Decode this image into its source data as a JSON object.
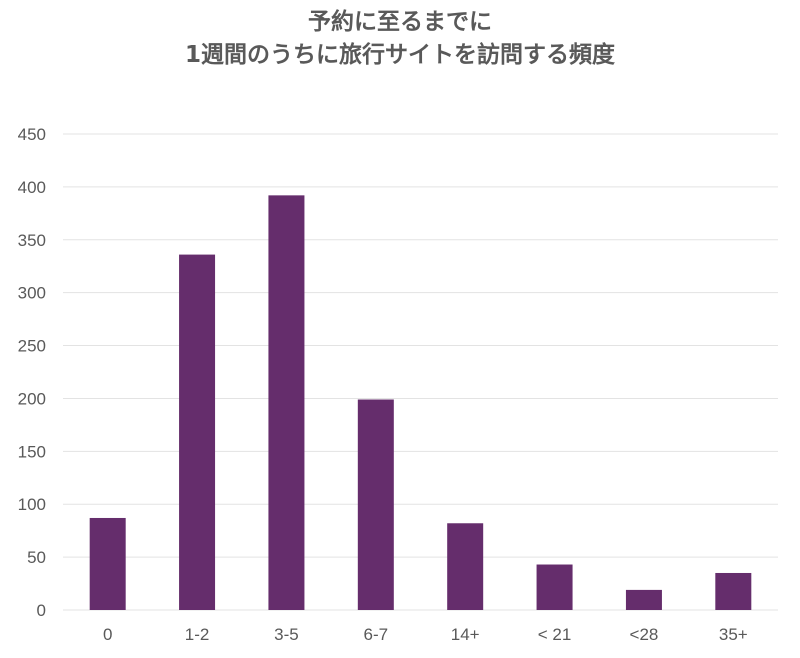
{
  "chart_data": {
    "type": "bar",
    "title_lines": [
      "予約に至るまでに",
      "1週間のうちに旅行サイトを訪問する頻度"
    ],
    "categories": [
      "0",
      "1-2",
      "3-5",
      "6-7",
      "14+",
      "< 21",
      "<28",
      "35+"
    ],
    "values": [
      87,
      336,
      392,
      199,
      82,
      43,
      19,
      35
    ],
    "ylim": [
      0,
      450
    ],
    "yticks": [
      0,
      50,
      100,
      150,
      200,
      250,
      300,
      350,
      400,
      450
    ],
    "grid": true,
    "legend": "none",
    "bar_color": "#652D6C",
    "grid_color": "#E3E3E3"
  }
}
